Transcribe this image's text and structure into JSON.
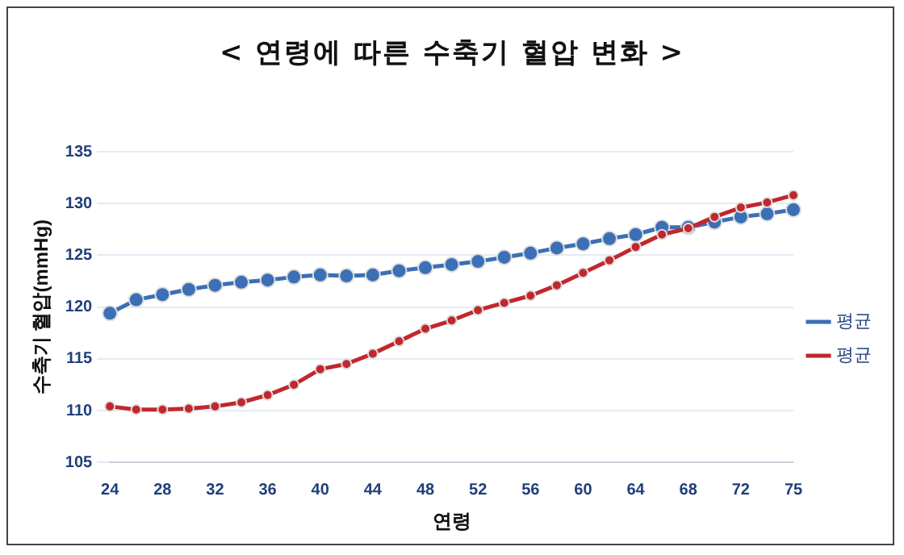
{
  "chart_data": {
    "type": "line",
    "title": "< 연령에 따른 수축기 혈압 변화 >",
    "xlabel": "연령",
    "ylabel": "수축기 혈압(mmHg)",
    "categories": [
      "24",
      null,
      "28",
      null,
      "32",
      null,
      "36",
      null,
      "40",
      null,
      "44",
      null,
      "48",
      null,
      "52",
      null,
      "56",
      null,
      "60",
      null,
      "64",
      null,
      "68",
      null,
      "72",
      null,
      "75"
    ],
    "series": [
      {
        "name": "평균",
        "color": "#3b6fb6",
        "values": [
          119.4,
          120.7,
          121.2,
          121.7,
          122.1,
          122.4,
          122.6,
          122.9,
          123.1,
          123.0,
          123.1,
          123.5,
          123.8,
          124.1,
          124.4,
          124.8,
          125.2,
          125.7,
          126.1,
          126.6,
          127.0,
          127.7,
          127.7,
          128.2,
          128.7,
          129.0,
          129.4
        ]
      },
      {
        "name": "평균",
        "color": "#c0282d",
        "values": [
          110.4,
          110.1,
          110.1,
          110.2,
          110.4,
          110.8,
          111.5,
          112.5,
          114.0,
          114.5,
          115.5,
          116.7,
          117.9,
          118.7,
          119.7,
          120.4,
          121.1,
          122.1,
          123.3,
          124.5,
          125.8,
          127.0,
          127.6,
          128.7,
          129.6,
          130.1,
          130.8
        ]
      }
    ],
    "ylim": [
      105,
      135
    ],
    "yticks": [
      105,
      110,
      115,
      120,
      125,
      130,
      135
    ],
    "grid": "y",
    "legend": "right",
    "marker": "circle",
    "line_style": "solid"
  }
}
